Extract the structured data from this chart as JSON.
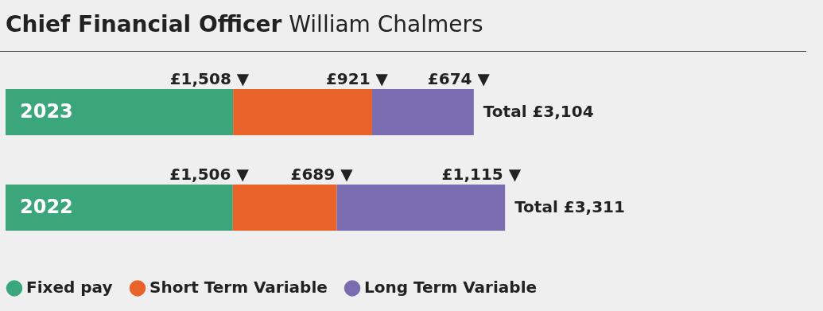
{
  "chart_data": {
    "type": "bar",
    "orientation": "horizontal",
    "stacked": true,
    "title": "Chief Financial Officer",
    "subtitle": "William Chalmers",
    "categories": [
      "2023",
      "2022"
    ],
    "series": [
      {
        "name": "Fixed pay",
        "color": "#3aa67a",
        "values": [
          1508,
          1506
        ],
        "value_labels": [
          "£1,508 ▼",
          "£1,506 ▼"
        ]
      },
      {
        "name": "Short Term Variable",
        "color": "#e8622a",
        "values": [
          921,
          689
        ],
        "value_labels": [
          "£921 ▼",
          "£689 ▼"
        ]
      },
      {
        "name": "Long Term Variable",
        "color": "#7a6cb0",
        "values": [
          674,
          1115
        ],
        "value_labels": [
          "£674 ▼",
          "£1,115 ▼"
        ]
      }
    ],
    "totals": [
      "Total £3,104",
      "Total £3,311"
    ],
    "legend": "bottom",
    "grid": false,
    "tick_labels": false
  }
}
